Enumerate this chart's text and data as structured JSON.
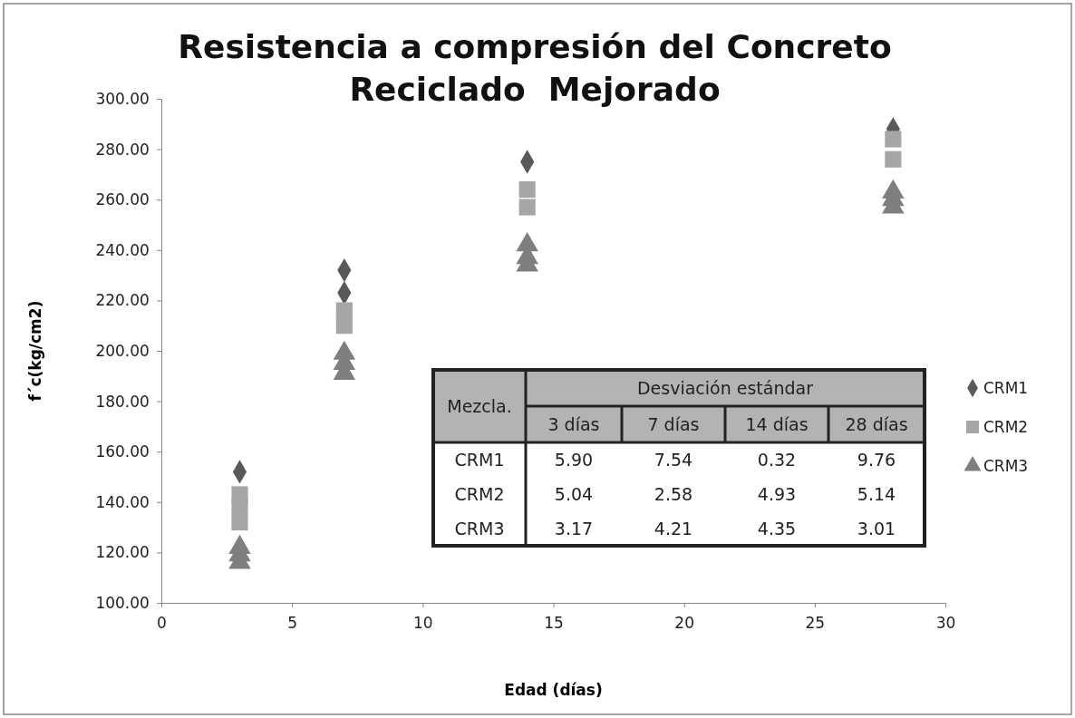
{
  "chart_data": {
    "type": "scatter",
    "title": "Resistencia a compresión del Concreto\nReciclado  Mejorado",
    "xlabel": "Edad (días)",
    "ylabel": "f´c(kg/cm2)",
    "xlim": [
      0,
      30
    ],
    "xticks": [
      0,
      5,
      10,
      15,
      20,
      25,
      30
    ],
    "ylim": [
      100,
      300
    ],
    "yticks": [
      {
        "value": 100,
        "label": "100.00"
      },
      {
        "value": 120,
        "label": "120.00"
      },
      {
        "value": 140,
        "label": "140.00"
      },
      {
        "value": 160,
        "label": "160.00"
      },
      {
        "value": 180,
        "label": "180.00"
      },
      {
        "value": 200,
        "label": "200.00"
      },
      {
        "value": 220,
        "label": "220.00"
      },
      {
        "value": 240,
        "label": "240.00"
      },
      {
        "value": 260,
        "label": "260.00"
      },
      {
        "value": 280,
        "label": "280.00"
      },
      {
        "value": 300,
        "label": "300.00"
      }
    ],
    "grid": false,
    "legend": "right",
    "series": [
      {
        "name": "CRM1",
        "color": "#595959",
        "marker": "diamond",
        "x": [
          3,
          7,
          7,
          14,
          28
        ],
        "values": [
          152,
          232,
          223,
          275,
          288
        ]
      },
      {
        "name": "CRM2",
        "color": "#a6a6a6",
        "marker": "square",
        "x": [
          3,
          3,
          3,
          7,
          7,
          14,
          14,
          28,
          28
        ],
        "values": [
          143,
          138,
          132,
          216,
          210,
          264,
          257,
          284,
          276
        ]
      },
      {
        "name": "CRM3",
        "color": "#7f7f7f",
        "marker": "triangle",
        "x": [
          3,
          3,
          3,
          7,
          7,
          7,
          14,
          14,
          14,
          28,
          28,
          28
        ],
        "values": [
          122,
          119,
          116,
          199,
          195,
          191,
          242,
          237,
          234,
          263,
          260,
          257
        ]
      }
    ],
    "annotations": [
      "Mezcla.",
      "Desviación estándar",
      "3 días",
      "7 días",
      "14 días",
      "28 días",
      "CRM1",
      "5.90",
      "7.54",
      "0.32",
      "9.76",
      "CRM2",
      "5.04",
      "2.58",
      "4.93",
      "5.14",
      "CRM3",
      "3.17",
      "4.21",
      "4.35",
      "3.01"
    ]
  }
}
